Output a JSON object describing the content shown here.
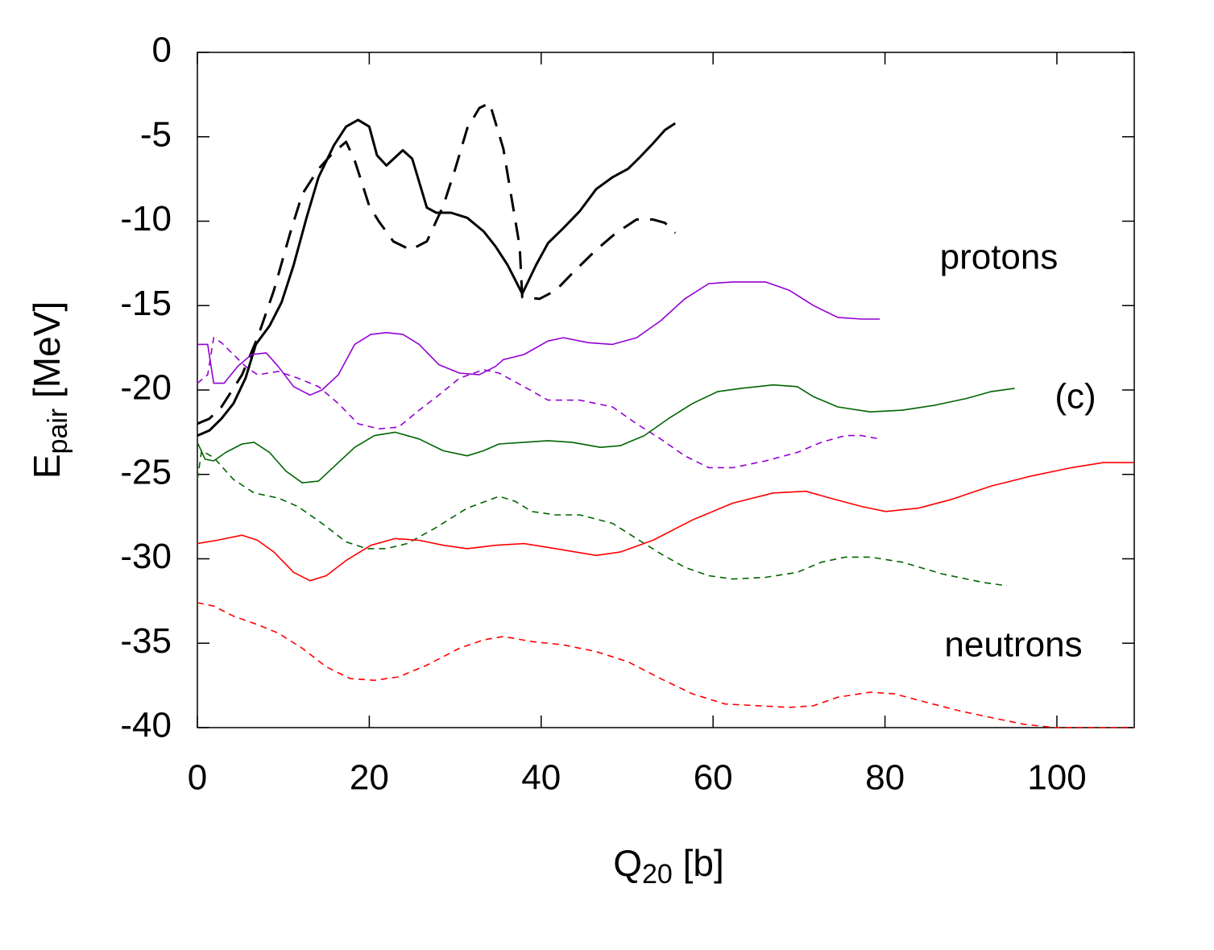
{
  "chart_data": {
    "type": "line",
    "xlabel": [
      "Q",
      "20",
      " [b]"
    ],
    "ylabel": [
      "E",
      "pair",
      " [MeV]"
    ],
    "annotations": [
      "protons",
      "(c)",
      "neutrons"
    ],
    "xlim": [
      0,
      109
    ],
    "ylim": [
      -40,
      0
    ],
    "xticks": [
      0,
      20,
      40,
      60,
      80,
      100
    ],
    "yticks": [
      -40,
      -35,
      -30,
      -25,
      -20,
      -15,
      -10,
      -5,
      0
    ],
    "series": [
      {
        "color": "#000000",
        "dashed": false,
        "width": 3,
        "x": [
          0,
          1.4,
          2.8,
          4.2,
          5.6,
          6.8,
          8.4,
          9.8,
          11.2,
          12.7,
          14.1,
          15.9,
          17.3,
          18.7,
          20,
          20.9,
          22,
          23.9,
          25,
          26.7,
          27.8,
          29.5,
          31.4,
          33.3,
          34.7,
          36.1,
          37.8,
          39.4,
          40.8,
          42.6,
          44.5,
          46.4,
          48.3,
          50.1,
          51.5,
          53,
          54.4,
          55.6
        ],
        "values": [
          -22.7,
          -22.4,
          -21.7,
          -20.8,
          -19.3,
          -17.3,
          -16.2,
          -14.8,
          -12.6,
          -9.8,
          -7.4,
          -5.5,
          -4.4,
          -4.0,
          -4.4,
          -6.1,
          -6.7,
          -5.8,
          -6.3,
          -9.2,
          -9.5,
          -9.5,
          -9.8,
          -10.6,
          -11.5,
          -12.6,
          -14.3,
          -12.6,
          -11.3,
          -10.4,
          -9.4,
          -8.1,
          -7.4,
          -6.9,
          -6.2,
          -5.4,
          -4.6,
          -4.2
        ]
      },
      {
        "color": "#000000",
        "dashed": true,
        "width": 3,
        "x": [
          0,
          1.4,
          2.8,
          5.2,
          7,
          8.9,
          10.8,
          12.2,
          14.1,
          15.7,
          17.3,
          18.3,
          20,
          21.1,
          22.8,
          24.8,
          26.7,
          28.6,
          30,
          31.4,
          32.8,
          34,
          35.6,
          37.5,
          37.8,
          39.8,
          41.7,
          43.6,
          46.4,
          48.7,
          51.1,
          53,
          54.4,
          55.6
        ],
        "values": [
          -22.0,
          -21.7,
          -21.0,
          -19.1,
          -16.9,
          -14.1,
          -10.7,
          -8.4,
          -6.9,
          -6.0,
          -5.3,
          -6.4,
          -9.1,
          -10.0,
          -11.2,
          -11.7,
          -11.2,
          -9.1,
          -6.9,
          -4.5,
          -3.3,
          -3.0,
          -5.7,
          -11.5,
          -14.5,
          -14.6,
          -14.1,
          -13.1,
          -11.7,
          -10.7,
          -9.9,
          -9.9,
          -10.1,
          -10.7
        ]
      },
      {
        "color": "#9400d3",
        "dashed": false,
        "width": 1.6,
        "x": [
          0,
          1.2,
          1.9,
          3.1,
          4.7,
          6.3,
          8,
          9.4,
          11.2,
          13.1,
          14.5,
          16.4,
          18.3,
          20.2,
          22,
          23.9,
          25.8,
          28.1,
          30.5,
          32.8,
          34.7,
          35.6,
          38,
          40.8,
          42.6,
          45.5,
          48.3,
          51.1,
          53.9,
          56.7,
          59.5,
          62.3,
          66.1,
          68.9,
          71.7,
          74.5,
          77.3,
          79.4
        ],
        "values": [
          -17.3,
          -17.3,
          -19.6,
          -19.6,
          -18.6,
          -17.9,
          -17.8,
          -18.6,
          -19.8,
          -20.3,
          -20.0,
          -19.1,
          -17.3,
          -16.7,
          -16.6,
          -16.7,
          -17.3,
          -18.5,
          -19.0,
          -19.1,
          -18.6,
          -18.2,
          -17.9,
          -17.1,
          -16.9,
          -17.2,
          -17.3,
          -16.9,
          -15.9,
          -14.6,
          -13.7,
          -13.6,
          -13.6,
          -14.1,
          -15.0,
          -15.7,
          -15.8,
          -15.8
        ]
      },
      {
        "color": "#9400d3",
        "dashed": true,
        "width": 1.6,
        "x": [
          0,
          1.2,
          1.9,
          2.8,
          4.2,
          5.6,
          7,
          9.4,
          11.7,
          14.1,
          16.4,
          18.7,
          21.1,
          23.4,
          25.8,
          28.1,
          30.5,
          33.3,
          35.1,
          38,
          40.8,
          44.5,
          48.3,
          51.1,
          53.9,
          56.7,
          59.5,
          62.3,
          66.1,
          69.8,
          72.6,
          75.4,
          77.3,
          79.4
        ],
        "values": [
          -19.6,
          -19.1,
          -16.9,
          -17.2,
          -17.9,
          -18.6,
          -19.1,
          -18.9,
          -19.3,
          -19.8,
          -20.8,
          -22.0,
          -22.3,
          -22.2,
          -21.2,
          -20.3,
          -19.3,
          -18.8,
          -19.0,
          -19.8,
          -20.6,
          -20.6,
          -21.0,
          -22.0,
          -22.9,
          -23.9,
          -24.6,
          -24.6,
          -24.2,
          -23.7,
          -23.1,
          -22.7,
          -22.7,
          -22.9
        ]
      },
      {
        "color": "#006400",
        "dashed": false,
        "width": 1.6,
        "x": [
          0,
          0.9,
          1.9,
          3.3,
          5.2,
          6.6,
          8.4,
          10.3,
          12.2,
          14.1,
          16.4,
          18.3,
          20.6,
          23,
          25.8,
          28.6,
          31.4,
          33.3,
          35.1,
          38,
          40.8,
          43.6,
          46.9,
          49.2,
          52,
          54.8,
          57.6,
          60.5,
          63.3,
          67,
          69.8,
          71.7,
          74.5,
          78.3,
          82,
          85.8,
          89.5,
          92.3,
          95.1
        ],
        "values": [
          -23.1,
          -24.1,
          -24.2,
          -23.7,
          -23.2,
          -23.1,
          -23.7,
          -24.8,
          -25.5,
          -25.4,
          -24.3,
          -23.4,
          -22.7,
          -22.5,
          -22.9,
          -23.6,
          -23.9,
          -23.6,
          -23.2,
          -23.1,
          -23.0,
          -23.1,
          -23.4,
          -23.3,
          -22.7,
          -21.7,
          -20.8,
          -20.1,
          -19.9,
          -19.7,
          -19.8,
          -20.4,
          -21.0,
          -21.3,
          -21.2,
          -20.9,
          -20.5,
          -20.1,
          -19.9
        ]
      },
      {
        "color": "#006400",
        "dashed": true,
        "width": 1.6,
        "x": [
          0,
          0.5,
          1.9,
          4.2,
          6.6,
          9.4,
          11.7,
          14.5,
          17.3,
          19.7,
          22,
          24.4,
          27.6,
          31.4,
          35.1,
          37,
          38.9,
          41.7,
          44.5,
          48.3,
          51.1,
          53.9,
          56.7,
          59.5,
          62.3,
          66.1,
          69.8,
          72.6,
          75.4,
          78.3,
          82,
          86.7,
          91.4,
          94.2
        ],
        "values": [
          -25.3,
          -23.6,
          -24.0,
          -25.3,
          -26.1,
          -26.4,
          -26.9,
          -27.9,
          -29.0,
          -29.4,
          -29.4,
          -29.1,
          -28.2,
          -27.0,
          -26.3,
          -26.6,
          -27.2,
          -27.4,
          -27.4,
          -27.9,
          -28.8,
          -29.7,
          -30.5,
          -31.0,
          -31.2,
          -31.1,
          -30.8,
          -30.2,
          -29.9,
          -29.9,
          -30.2,
          -30.9,
          -31.4,
          -31.6
        ]
      },
      {
        "color": "#ff0000",
        "dashed": false,
        "width": 1.6,
        "x": [
          0,
          2.3,
          5.2,
          7,
          8.9,
          11.2,
          13.1,
          15,
          17.3,
          20.2,
          23,
          25.8,
          28.6,
          31.4,
          34.7,
          38,
          41.7,
          46.4,
          49.2,
          53,
          57.6,
          62.3,
          67,
          70.8,
          73.6,
          77.3,
          80.1,
          83.9,
          87.6,
          92.3,
          97,
          101.7,
          105.4,
          109
        ],
        "values": [
          -29.1,
          -28.9,
          -28.6,
          -28.9,
          -29.6,
          -30.8,
          -31.3,
          -31.0,
          -30.1,
          -29.2,
          -28.8,
          -28.9,
          -29.2,
          -29.4,
          -29.2,
          -29.1,
          -29.4,
          -29.8,
          -29.6,
          -28.9,
          -27.7,
          -26.7,
          -26.1,
          -26.0,
          -26.4,
          -26.9,
          -27.2,
          -27.0,
          -26.5,
          -25.7,
          -25.1,
          -24.6,
          -24.3,
          -24.3
        ]
      },
      {
        "color": "#ff0000",
        "dashed": true,
        "width": 1.6,
        "x": [
          0,
          1.9,
          4.2,
          7,
          9.4,
          12.2,
          15,
          17.8,
          20.6,
          23.4,
          26.7,
          30.5,
          33.3,
          35.6,
          38.9,
          42.6,
          46.4,
          50.1,
          53.9,
          57.6,
          61.4,
          65.1,
          68.9,
          71.7,
          74.5,
          78.3,
          81.1,
          84.8,
          88.6,
          92.3,
          96.1,
          99.8,
          104.5,
          109
        ],
        "values": [
          -32.6,
          -32.8,
          -33.4,
          -33.9,
          -34.4,
          -35.3,
          -36.4,
          -37.1,
          -37.2,
          -37.0,
          -36.3,
          -35.3,
          -34.8,
          -34.6,
          -34.9,
          -35.1,
          -35.5,
          -36.1,
          -37.1,
          -38.0,
          -38.6,
          -38.7,
          -38.8,
          -38.7,
          -38.2,
          -37.9,
          -38.0,
          -38.5,
          -39.0,
          -39.4,
          -39.8,
          -40.0,
          -40.0,
          -40.0
        ]
      }
    ]
  }
}
